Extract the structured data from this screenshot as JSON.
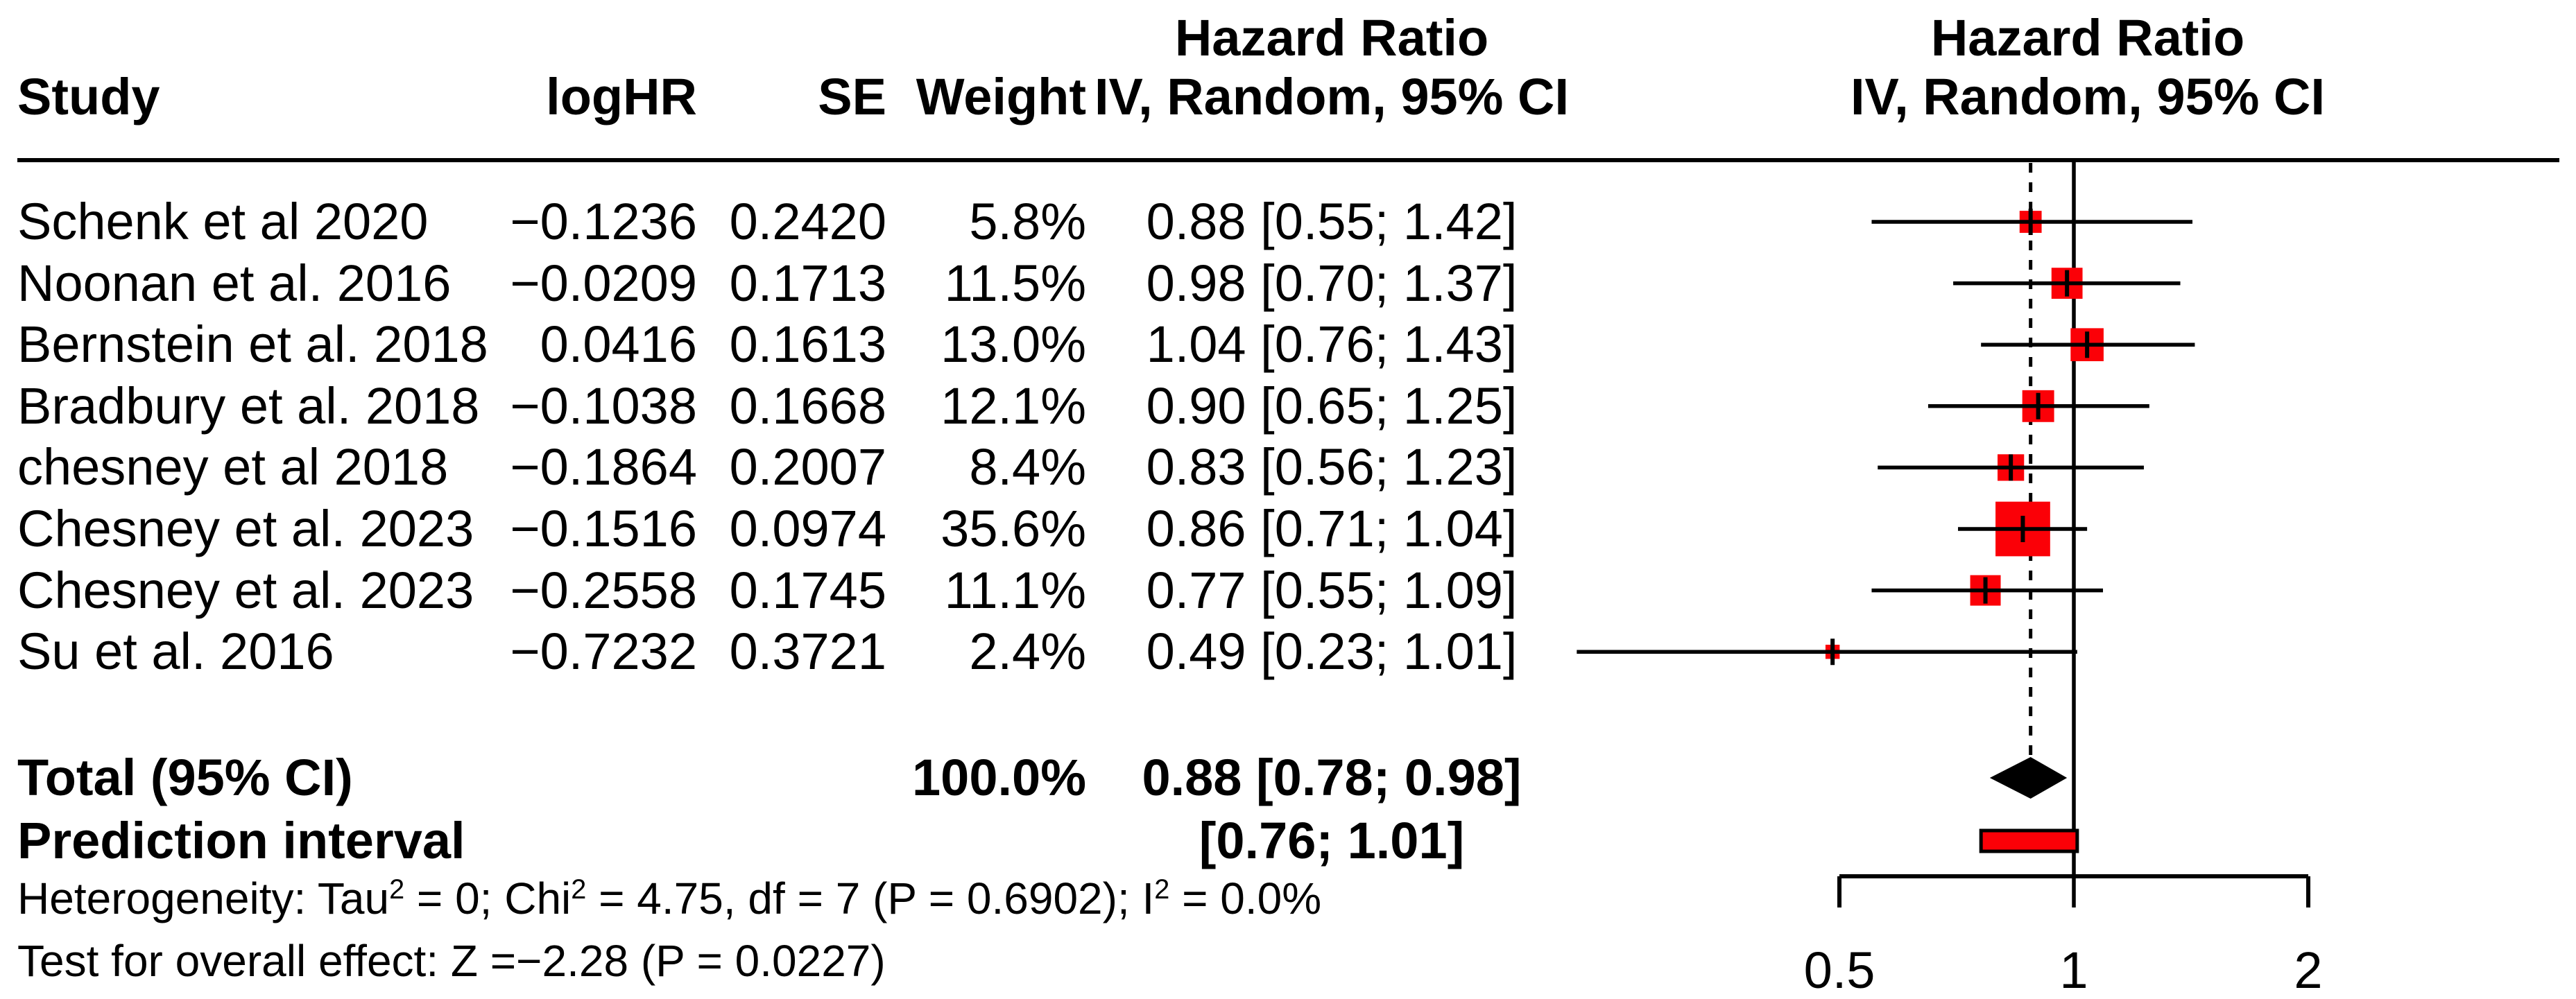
{
  "header": {
    "study": "Study",
    "loghr": "logHR",
    "se": "SE",
    "weight": "Weight",
    "effect_col_line1": "Hazard Ratio",
    "effect_col_line2": "IV, Random, 95% CI",
    "plot_col_line1": "Hazard Ratio",
    "plot_col_line2": "IV, Random, 95% CI"
  },
  "total_row": {
    "label": "Total (95% CI)",
    "weight": "100.0%",
    "effect": "0.88 [0.78; 0.98]"
  },
  "prediction_row": {
    "label": "Prediction interval",
    "effect": "[0.76; 1.01]"
  },
  "heterogeneity_parts": [
    {
      "text": "Heterogeneity: Tau"
    },
    {
      "text": "2",
      "sup": true
    },
    {
      "text": " = 0; Chi"
    },
    {
      "text": "2",
      "sup": true
    },
    {
      "text": " = 4.75, df = 7 (P = 0.6902); I"
    },
    {
      "text": "2",
      "sup": true
    },
    {
      "text": " = 0.0%"
    }
  ],
  "overall_test": "Test for overall effect: Z =−2.28 (P = 0.0227)",
  "chart_data": {
    "type": "forest",
    "scale": "log",
    "effect_measure": "Hazard Ratio",
    "model": "IV, Random, 95% CI",
    "axis": {
      "ticks": [
        0.5,
        1,
        2
      ],
      "tick_labels": [
        "0.5",
        "1",
        "2"
      ],
      "range": [
        0.5,
        2
      ],
      "reference_line": 1.0,
      "summary_dashed_line": 0.88
    },
    "studies": [
      {
        "name": "Schenk et al 2020",
        "loghr": "−0.1236",
        "se": "0.2420",
        "weight": "5.8%",
        "weight_pct": 5.8,
        "hr": 0.88,
        "ci_low": 0.55,
        "ci_high": 1.42,
        "effect": "0.88 [0.55; 1.42]"
      },
      {
        "name": "Noonan et al. 2016",
        "loghr": "−0.0209",
        "se": "0.1713",
        "weight": "11.5%",
        "weight_pct": 11.5,
        "hr": 0.98,
        "ci_low": 0.7,
        "ci_high": 1.37,
        "effect": "0.98 [0.70; 1.37]"
      },
      {
        "name": "Bernstein et al. 2018",
        "loghr": "0.0416",
        "se": "0.1613",
        "weight": "13.0%",
        "weight_pct": 13.0,
        "hr": 1.04,
        "ci_low": 0.76,
        "ci_high": 1.43,
        "effect": "1.04 [0.76; 1.43]"
      },
      {
        "name": "Bradbury et al. 2018",
        "loghr": "−0.1038",
        "se": "0.1668",
        "weight": "12.1%",
        "weight_pct": 12.1,
        "hr": 0.9,
        "ci_low": 0.65,
        "ci_high": 1.25,
        "effect": "0.90 [0.65; 1.25]"
      },
      {
        "name": "chesney et al 2018",
        "loghr": "−0.1864",
        "se": "0.2007",
        "weight": "8.4%",
        "weight_pct": 8.4,
        "hr": 0.83,
        "ci_low": 0.56,
        "ci_high": 1.23,
        "effect": "0.83 [0.56; 1.23]"
      },
      {
        "name": "Chesney et al. 2023",
        "loghr": "−0.1516",
        "se": "0.0974",
        "weight": "35.6%",
        "weight_pct": 35.6,
        "hr": 0.86,
        "ci_low": 0.71,
        "ci_high": 1.04,
        "effect": "0.86 [0.71; 1.04]"
      },
      {
        "name": "Chesney et al. 2023",
        "loghr": "−0.2558",
        "se": "0.1745",
        "weight": "11.1%",
        "weight_pct": 11.1,
        "hr": 0.77,
        "ci_low": 0.55,
        "ci_high": 1.09,
        "effect": "0.77 [0.55; 1.09]"
      },
      {
        "name": "Su et al. 2016",
        "loghr": "−0.7232",
        "se": "0.3721",
        "weight": "2.4%",
        "weight_pct": 2.4,
        "hr": 0.49,
        "ci_low": 0.23,
        "ci_high": 1.01,
        "effect": "0.49 [0.23; 1.01]"
      }
    ],
    "total": {
      "hr": 0.88,
      "ci_low": 0.78,
      "ci_high": 0.98,
      "weight_pct": 100.0
    },
    "prediction_interval": {
      "ci_low": 0.76,
      "ci_high": 1.01
    },
    "colors": {
      "square": "#FB0007",
      "prediction_fill": "#FB0007",
      "diamond": "#000000",
      "line": "#000000"
    }
  }
}
